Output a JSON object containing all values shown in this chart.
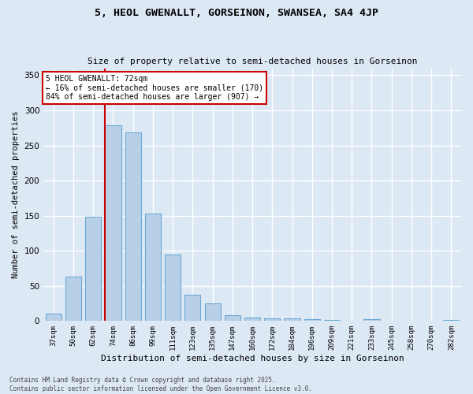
{
  "title1": "5, HEOL GWENALLT, GORSEINON, SWANSEA, SA4 4JP",
  "title2": "Size of property relative to semi-detached houses in Gorseinon",
  "xlabel": "Distribution of semi-detached houses by size in Gorseinon",
  "ylabel": "Number of semi-detached properties",
  "categories": [
    "37sqm",
    "50sqm",
    "62sqm",
    "74sqm",
    "86sqm",
    "99sqm",
    "111sqm",
    "123sqm",
    "135sqm",
    "147sqm",
    "160sqm",
    "172sqm",
    "184sqm",
    "196sqm",
    "209sqm",
    "221sqm",
    "233sqm",
    "245sqm",
    "258sqm",
    "270sqm",
    "282sqm"
  ],
  "values": [
    10,
    63,
    148,
    279,
    269,
    153,
    95,
    37,
    25,
    8,
    5,
    4,
    4,
    3,
    2,
    0,
    3,
    0,
    0,
    0,
    2
  ],
  "bar_color": "#b8cfe8",
  "bar_edge_color": "#6aaad4",
  "vline_index": 3,
  "annotation_text": "5 HEOL GWENALLT: 72sqm\n← 16% of semi-detached houses are smaller (170)\n84% of semi-detached houses are larger (907) →",
  "annotation_box_facecolor": "#ffffff",
  "annotation_box_edgecolor": "#cc0000",
  "vline_color": "#cc0000",
  "ylim": [
    0,
    360
  ],
  "yticks": [
    0,
    50,
    100,
    150,
    200,
    250,
    300,
    350
  ],
  "background_color": "#dde8f5",
  "grid_color": "#ffffff",
  "footer_text": "Contains HM Land Registry data © Crown copyright and database right 2025.\nContains public sector information licensed under the Open Government Licence v3.0."
}
